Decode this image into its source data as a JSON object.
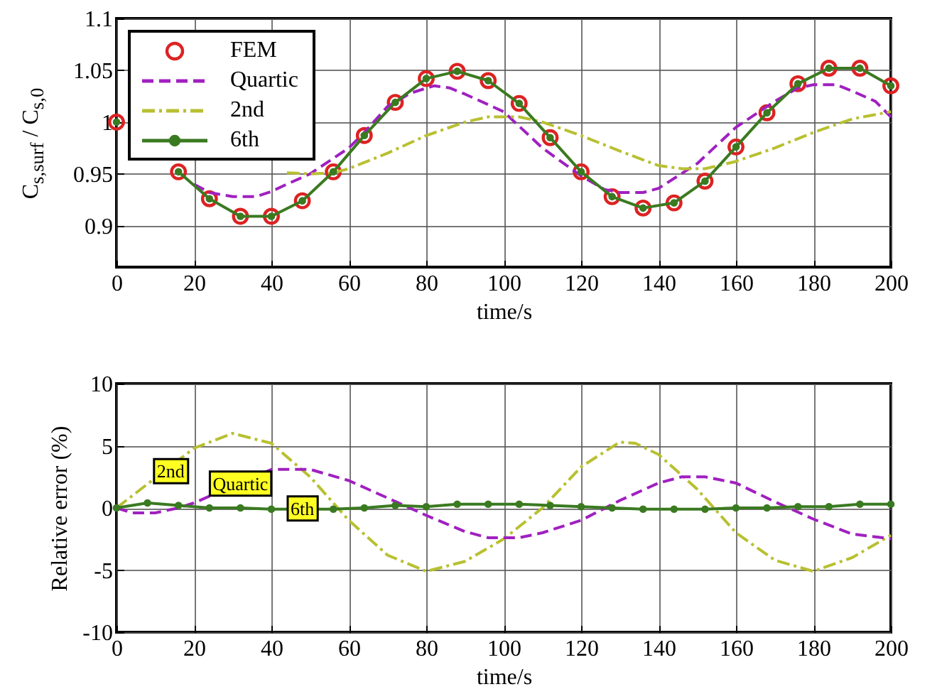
{
  "chart_data": [
    {
      "type": "line",
      "ylabel": "C$_{s,surf}$ / C$_{s,0}$",
      "xlabel": "time/s",
      "xlim": [
        0,
        200
      ],
      "xticks": [
        0,
        20,
        40,
        60,
        80,
        100,
        120,
        140,
        160,
        180,
        200
      ],
      "ylim": [
        0.86,
        1.1
      ],
      "yticks": [
        0.9,
        0.95,
        1,
        1.05,
        1.1
      ],
      "grid": true,
      "legend": "top left",
      "series": [
        {
          "name": "FEM",
          "type": "scatter",
          "marker": "circle",
          "color": "#dd2222",
          "x": [
            0,
            8,
            16,
            24,
            32,
            40,
            48,
            56,
            64,
            72,
            80,
            88,
            96,
            104,
            112,
            120,
            128,
            136,
            144,
            152,
            160,
            168,
            176,
            184,
            192,
            200
          ],
          "values": [
            1.0,
            null,
            0.952,
            0.926,
            0.909,
            0.909,
            0.924,
            0.952,
            0.987,
            1.019,
            1.042,
            1.049,
            1.04,
            1.018,
            0.985,
            0.952,
            0.928,
            0.917,
            0.922,
            0.943,
            0.976,
            1.009,
            1.037,
            1.052,
            1.052,
            1.035
          ]
        },
        {
          "name": "Quartic",
          "type": "line",
          "line_style": "dashed",
          "color": "#a020c0",
          "x": [
            20,
            24,
            30,
            36,
            40,
            44,
            50,
            60,
            64,
            70,
            76,
            82,
            86,
            90,
            100,
            110,
            120,
            126,
            130,
            136,
            140,
            150,
            160,
            170,
            176,
            180,
            186,
            190,
            196,
            200
          ],
          "values": [
            0.94,
            0.932,
            0.928,
            0.928,
            0.933,
            0.94,
            0.95,
            0.975,
            0.99,
            1.015,
            1.028,
            1.035,
            1.033,
            1.027,
            1.01,
            0.975,
            0.948,
            0.935,
            0.932,
            0.932,
            0.936,
            0.96,
            0.995,
            1.02,
            1.033,
            1.036,
            1.036,
            1.03,
            1.02,
            1.005
          ]
        },
        {
          "name": "2nd",
          "type": "line",
          "line_style": "dashdot",
          "color": "#b8c030",
          "x": [
            44,
            50,
            56,
            60,
            70,
            80,
            90,
            96,
            104,
            110,
            120,
            130,
            140,
            146,
            152,
            160,
            170,
            180,
            190,
            200
          ],
          "values": [
            0.951,
            0.95,
            0.951,
            0.955,
            0.97,
            0.987,
            1.0,
            1.005,
            1.005,
            1.0,
            0.987,
            0.972,
            0.958,
            0.955,
            0.955,
            0.962,
            0.975,
            0.99,
            1.003,
            1.01
          ]
        },
        {
          "name": "6th",
          "type": "line",
          "marker": "circle",
          "color": "#3a7a20",
          "x": [
            0,
            8,
            16,
            24,
            32,
            40,
            48,
            56,
            64,
            72,
            80,
            88,
            96,
            104,
            112,
            120,
            128,
            136,
            144,
            152,
            160,
            168,
            176,
            184,
            192,
            200
          ],
          "values": [
            1.0,
            null,
            0.952,
            0.926,
            0.909,
            0.909,
            0.924,
            0.952,
            0.987,
            1.019,
            1.042,
            1.049,
            1.04,
            1.018,
            0.985,
            0.952,
            0.928,
            0.917,
            0.922,
            0.943,
            0.976,
            1.009,
            1.037,
            1.052,
            1.052,
            1.035
          ]
        }
      ]
    },
    {
      "type": "line",
      "ylabel": "Relative error (%)",
      "xlabel": "time/s",
      "xlim": [
        0,
        200
      ],
      "xticks": [
        0,
        20,
        40,
        60,
        80,
        100,
        120,
        140,
        160,
        180,
        200
      ],
      "ylim": [
        -10,
        10
      ],
      "yticks": [
        -10,
        -5,
        0,
        5,
        10
      ],
      "grid": true,
      "annotations": [
        {
          "text": "2nd",
          "x": 14,
          "y": 2.9
        },
        {
          "text": "Quartic",
          "x": 32,
          "y": 1.9
        },
        {
          "text": "6th",
          "x": 48,
          "y": -0.1
        }
      ],
      "series": [
        {
          "type": "line",
          "line_style": "dashdot",
          "color": "#b8c030",
          "x": [
            0,
            20,
            30,
            40,
            50,
            60,
            70,
            80,
            90,
            100,
            110,
            120,
            130,
            134,
            140,
            150,
            160,
            170,
            180,
            190,
            200
          ],
          "values": [
            0,
            4.8,
            6.0,
            5.2,
            2.5,
            -1,
            -3.8,
            -5.1,
            -4.3,
            -2.5,
            0,
            3.3,
            5.3,
            5.2,
            4.3,
            1.5,
            -2,
            -4.2,
            -5.1,
            -4.0,
            -2.2
          ]
        },
        {
          "type": "line",
          "line_style": "dashed",
          "color": "#a020c0",
          "x": [
            0,
            4,
            10,
            16,
            20,
            40,
            50,
            60,
            70,
            80,
            90,
            96,
            104,
            110,
            120,
            130,
            140,
            146,
            152,
            160,
            170,
            180,
            190,
            198,
            200
          ],
          "values": [
            0,
            -0.4,
            -0.4,
            0,
            0.4,
            3.1,
            3.1,
            2.2,
            0.8,
            -0.6,
            -1.9,
            -2.4,
            -2.4,
            -2.0,
            -1.0,
            0.6,
            2.0,
            2.5,
            2.5,
            2.0,
            0.5,
            -0.9,
            -2.1,
            -2.4,
            -2.5
          ]
        },
        {
          "type": "line",
          "marker": "circle",
          "color": "#3a7a20",
          "x": [
            0,
            8,
            16,
            24,
            32,
            40,
            48,
            56,
            64,
            72,
            80,
            88,
            96,
            104,
            112,
            120,
            128,
            136,
            144,
            152,
            160,
            168,
            176,
            184,
            192,
            200
          ],
          "values": [
            0,
            0.4,
            0.2,
            0,
            0,
            -0.1,
            -0.1,
            -0.1,
            0,
            0.2,
            0.1,
            0.3,
            0.3,
            0.3,
            0.2,
            0.1,
            0,
            -0.1,
            -0.1,
            -0.1,
            0,
            0,
            0.1,
            0.1,
            0.3,
            0.3
          ]
        }
      ]
    }
  ]
}
